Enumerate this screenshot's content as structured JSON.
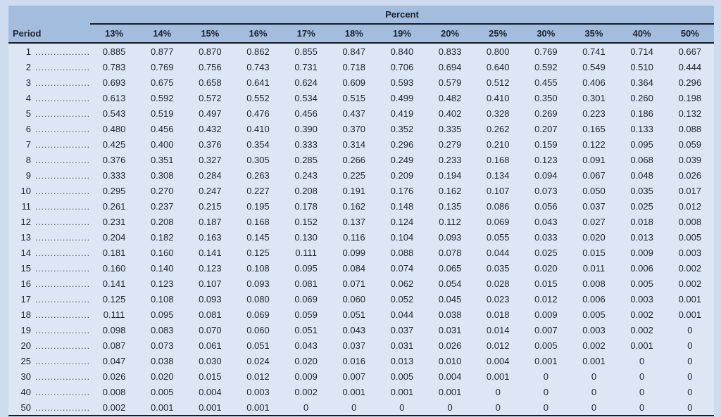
{
  "table": {
    "group_header": "Percent",
    "row_header": "Period",
    "columns": [
      "13%",
      "14%",
      "15%",
      "16%",
      "17%",
      "18%",
      "19%",
      "20%",
      "25%",
      "30%",
      "35%",
      "40%",
      "50%"
    ],
    "rows": [
      {
        "period": "1",
        "values": [
          "0.885",
          "0.877",
          "0.870",
          "0.862",
          "0.855",
          "0.847",
          "0.840",
          "0.833",
          "0.800",
          "0.769",
          "0.741",
          "0.714",
          "0.667"
        ]
      },
      {
        "period": "2",
        "values": [
          "0.783",
          "0.769",
          "0.756",
          "0.743",
          "0.731",
          "0.718",
          "0.706",
          "0.694",
          "0.640",
          "0.592",
          "0.549",
          "0.510",
          "0.444"
        ]
      },
      {
        "period": "3",
        "values": [
          "0.693",
          "0.675",
          "0.658",
          "0.641",
          "0.624",
          "0.609",
          "0.593",
          "0.579",
          "0.512",
          "0.455",
          "0.406",
          "0.364",
          "0.296"
        ]
      },
      {
        "period": "4",
        "values": [
          "0.613",
          "0.592",
          "0.572",
          "0.552",
          "0.534",
          "0.515",
          "0.499",
          "0.482",
          "0.410",
          "0.350",
          "0.301",
          "0.260",
          "0.198"
        ]
      },
      {
        "period": "5",
        "values": [
          "0.543",
          "0.519",
          "0.497",
          "0.476",
          "0.456",
          "0.437",
          "0.419",
          "0.402",
          "0.328",
          "0.269",
          "0.223",
          "0.186",
          "0.132"
        ]
      },
      {
        "period": "6",
        "values": [
          "0.480",
          "0.456",
          "0.432",
          "0.410",
          "0.390",
          "0.370",
          "0.352",
          "0.335",
          "0.262",
          "0.207",
          "0.165",
          "0.133",
          "0.088"
        ]
      },
      {
        "period": "7",
        "values": [
          "0.425",
          "0.400",
          "0.376",
          "0.354",
          "0.333",
          "0.314",
          "0.296",
          "0.279",
          "0.210",
          "0.159",
          "0.122",
          "0.095",
          "0.059"
        ]
      },
      {
        "period": "8",
        "values": [
          "0.376",
          "0.351",
          "0.327",
          "0.305",
          "0.285",
          "0.266",
          "0.249",
          "0.233",
          "0.168",
          "0.123",
          "0.091",
          "0.068",
          "0.039"
        ]
      },
      {
        "period": "9",
        "values": [
          "0.333",
          "0.308",
          "0.284",
          "0.263",
          "0.243",
          "0.225",
          "0.209",
          "0.194",
          "0.134",
          "0.094",
          "0.067",
          "0.048",
          "0.026"
        ]
      },
      {
        "period": "10",
        "values": [
          "0.295",
          "0.270",
          "0.247",
          "0.227",
          "0.208",
          "0.191",
          "0.176",
          "0.162",
          "0.107",
          "0.073",
          "0.050",
          "0.035",
          "0.017"
        ]
      },
      {
        "period": "11",
        "values": [
          "0.261",
          "0.237",
          "0.215",
          "0.195",
          "0.178",
          "0.162",
          "0.148",
          "0.135",
          "0.086",
          "0.056",
          "0.037",
          "0.025",
          "0.012"
        ]
      },
      {
        "period": "12",
        "values": [
          "0.231",
          "0.208",
          "0.187",
          "0.168",
          "0.152",
          "0.137",
          "0.124",
          "0.112",
          "0.069",
          "0.043",
          "0.027",
          "0.018",
          "0.008"
        ]
      },
      {
        "period": "13",
        "values": [
          "0.204",
          "0.182",
          "0.163",
          "0.145",
          "0.130",
          "0.116",
          "0.104",
          "0.093",
          "0.055",
          "0.033",
          "0.020",
          "0.013",
          "0.005"
        ]
      },
      {
        "period": "14",
        "values": [
          "0.181",
          "0.160",
          "0.141",
          "0.125",
          "0.111",
          "0.099",
          "0.088",
          "0.078",
          "0.044",
          "0.025",
          "0.015",
          "0.009",
          "0.003"
        ]
      },
      {
        "period": "15",
        "values": [
          "0.160",
          "0.140",
          "0.123",
          "0.108",
          "0.095",
          "0.084",
          "0.074",
          "0.065",
          "0.035",
          "0.020",
          "0.011",
          "0.006",
          "0.002"
        ]
      },
      {
        "period": "16",
        "values": [
          "0.141",
          "0.123",
          "0.107",
          "0.093",
          "0.081",
          "0.071",
          "0.062",
          "0.054",
          "0.028",
          "0.015",
          "0.008",
          "0.005",
          "0.002"
        ]
      },
      {
        "period": "17",
        "values": [
          "0.125",
          "0.108",
          "0.093",
          "0.080",
          "0.069",
          "0.060",
          "0.052",
          "0.045",
          "0.023",
          "0.012",
          "0.006",
          "0.003",
          "0.001"
        ]
      },
      {
        "period": "18",
        "values": [
          "0.111",
          "0.095",
          "0.081",
          "0.069",
          "0.059",
          "0.051",
          "0.044",
          "0.038",
          "0.018",
          "0.009",
          "0.005",
          "0.002",
          "0.001"
        ]
      },
      {
        "period": "19",
        "values": [
          "0.098",
          "0.083",
          "0.070",
          "0.060",
          "0.051",
          "0.043",
          "0.037",
          "0.031",
          "0.014",
          "0.007",
          "0.003",
          "0.002",
          "0"
        ]
      },
      {
        "period": "20",
        "values": [
          "0.087",
          "0.073",
          "0.061",
          "0.051",
          "0.043",
          "0.037",
          "0.031",
          "0.026",
          "0.012",
          "0.005",
          "0.002",
          "0.001",
          "0"
        ]
      },
      {
        "period": "25",
        "values": [
          "0.047",
          "0.038",
          "0.030",
          "0.024",
          "0.020",
          "0.016",
          "0.013",
          "0.010",
          "0.004",
          "0.001",
          "0.001",
          "0",
          "0"
        ]
      },
      {
        "period": "30",
        "values": [
          "0.026",
          "0.020",
          "0.015",
          "0.012",
          "0.009",
          "0.007",
          "0.005",
          "0.004",
          "0.001",
          "0",
          "0",
          "0",
          "0"
        ]
      },
      {
        "period": "40",
        "values": [
          "0.008",
          "0.005",
          "0.004",
          "0.003",
          "0.002",
          "0.001",
          "0.001",
          "0.001",
          "0",
          "0",
          "0",
          "0",
          "0"
        ]
      },
      {
        "period": "50",
        "values": [
          "0.002",
          "0.001",
          "0.001",
          "0.001",
          "0",
          "0",
          "0",
          "0",
          "0",
          "0",
          "0",
          "0",
          "0"
        ]
      }
    ]
  },
  "colors": {
    "page_background": "#cfdcef",
    "header_band": "#a3bddf",
    "body_background": "#dce6f4",
    "rule_line": "#171b22",
    "text": "#1e232e"
  }
}
